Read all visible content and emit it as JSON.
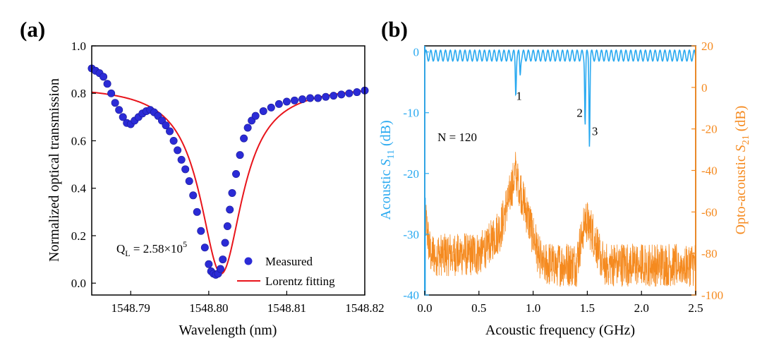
{
  "panels": {
    "a": {
      "label": "(a)"
    },
    "b": {
      "label": "(b)"
    }
  },
  "colors": {
    "measured": "#2b2bd6",
    "fit": "#e8141b",
    "s11": "#29a9f0",
    "s21": "#f58a1f",
    "axis": "#000000"
  },
  "chart_data": [
    {
      "type": "scatter",
      "panel": "a",
      "xlabel": "Wavelength (nm)",
      "ylabel": "Normalized optical transmission",
      "xlim": [
        1548.785,
        1548.82
      ],
      "ylim": [
        -0.05,
        1.0
      ],
      "xticks": [
        "1548.79",
        "1548.80",
        "1548.81",
        "1548.82"
      ],
      "xtick_values": [
        1548.79,
        1548.8,
        1548.81,
        1548.82
      ],
      "yticks": [
        "0.0",
        "0.2",
        "0.4",
        "0.6",
        "0.8",
        "1.0"
      ],
      "ytick_values": [
        0.0,
        0.2,
        0.4,
        0.6,
        0.8,
        1.0
      ],
      "annotation": {
        "text_main": "Q",
        "text_sub": "L",
        "text_rest": " = 2.58×10",
        "text_sup": "5"
      },
      "legend": {
        "position": "bottom-right",
        "entries": [
          "Measured",
          "Lorentz fitting"
        ]
      },
      "series": [
        {
          "name": "Measured",
          "style": "markers",
          "x": [
            1548.785,
            1548.7855,
            1548.786,
            1548.7865,
            1548.787,
            1548.7875,
            1548.788,
            1548.7885,
            1548.789,
            1548.7895,
            1548.79,
            1548.7905,
            1548.791,
            1548.7915,
            1548.792,
            1548.7925,
            1548.793,
            1548.7935,
            1548.794,
            1548.7945,
            1548.795,
            1548.7955,
            1548.796,
            1548.7965,
            1548.797,
            1548.7975,
            1548.798,
            1548.7985,
            1548.799,
            1548.7995,
            1548.8,
            1548.8003,
            1548.8006,
            1548.8009,
            1548.8012,
            1548.8015,
            1548.8018,
            1548.8021,
            1548.8024,
            1548.8027,
            1548.803,
            1548.8035,
            1548.804,
            1548.8045,
            1548.805,
            1548.8055,
            1548.806,
            1548.807,
            1548.808,
            1548.809,
            1548.81,
            1548.811,
            1548.812,
            1548.813,
            1548.814,
            1548.815,
            1548.816,
            1548.817,
            1548.818,
            1548.819,
            1548.82
          ],
          "y": [
            0.905,
            0.895,
            0.885,
            0.87,
            0.84,
            0.8,
            0.76,
            0.73,
            0.7,
            0.675,
            0.67,
            0.685,
            0.7,
            0.715,
            0.725,
            0.73,
            0.72,
            0.705,
            0.685,
            0.665,
            0.64,
            0.6,
            0.56,
            0.52,
            0.48,
            0.43,
            0.37,
            0.3,
            0.22,
            0.15,
            0.08,
            0.05,
            0.04,
            0.035,
            0.04,
            0.06,
            0.1,
            0.17,
            0.24,
            0.31,
            0.38,
            0.46,
            0.54,
            0.61,
            0.655,
            0.685,
            0.705,
            0.725,
            0.74,
            0.755,
            0.765,
            0.77,
            0.775,
            0.78,
            0.78,
            0.785,
            0.79,
            0.795,
            0.8,
            0.805,
            0.812
          ]
        },
        {
          "name": "Lorentz fitting",
          "style": "line",
          "model": {
            "baseline": 0.835,
            "depth": 0.795,
            "center": 1548.8016,
            "hwhm": 0.0033
          }
        }
      ]
    },
    {
      "type": "line",
      "panel": "b",
      "xlabel": "Acoustic frequency (GHz)",
      "ylabel_left": {
        "main": "Acoustic ",
        "italic": "S",
        "sub": "11",
        "rest": " (dB)"
      },
      "ylabel_right": {
        "main": "Opto-acoustic ",
        "italic": "S",
        "sub": "21",
        "rest": " (dB)"
      },
      "xlim": [
        0.0,
        2.5
      ],
      "ylim_left": [
        -40,
        1
      ],
      "ylim_right": [
        -100,
        20
      ],
      "xticks": [
        "0.0",
        "0.5",
        "1.0",
        "1.5",
        "2.0",
        "2.5"
      ],
      "xtick_values": [
        0.0,
        0.5,
        1.0,
        1.5,
        2.0,
        2.5
      ],
      "yticks_left": [
        "0",
        "-10",
        "-20",
        "-30",
        "-40"
      ],
      "ytick_values_left": [
        0,
        -10,
        -20,
        -30,
        -40
      ],
      "yticks_right": [
        "20",
        "0",
        "-20",
        "-40",
        "-60",
        "-80",
        "-100"
      ],
      "ytick_values_right": [
        20,
        0,
        -20,
        -40,
        -60,
        -80,
        -100
      ],
      "annotations": [
        {
          "text": "N = 120",
          "x": 0.3,
          "y_left": -14
        },
        {
          "text": "1",
          "x": 0.87,
          "y_left": -7.2
        },
        {
          "text": "2",
          "x": 1.43,
          "y_left": -10
        },
        {
          "text": "3",
          "x": 1.57,
          "y_left": -13
        }
      ],
      "series": [
        {
          "name": "S11",
          "axis": "left",
          "ripple": {
            "mean": -0.6,
            "amplitude": 0.9,
            "period_ghz": 0.045
          },
          "dips": [
            {
              "x": 0.84,
              "y": -6.5
            },
            {
              "x": 0.88,
              "y": -3.5
            },
            {
              "x": 1.48,
              "y": -11.5
            },
            {
              "x": 1.52,
              "y": -14.8
            }
          ]
        },
        {
          "name": "S21",
          "axis": "right",
          "noise_floor": -80,
          "envelope": [
            {
              "x": 0.0,
              "y": -60
            },
            {
              "x": 0.05,
              "y": -80
            },
            {
              "x": 0.5,
              "y": -80
            },
            {
              "x": 0.7,
              "y": -68
            },
            {
              "x": 0.84,
              "y": -40
            },
            {
              "x": 0.95,
              "y": -62
            },
            {
              "x": 1.05,
              "y": -80
            },
            {
              "x": 1.1,
              "y": -85
            },
            {
              "x": 1.4,
              "y": -85
            },
            {
              "x": 1.48,
              "y": -63
            },
            {
              "x": 1.55,
              "y": -70
            },
            {
              "x": 1.65,
              "y": -85
            },
            {
              "x": 2.5,
              "y": -85
            }
          ]
        }
      ]
    }
  ]
}
